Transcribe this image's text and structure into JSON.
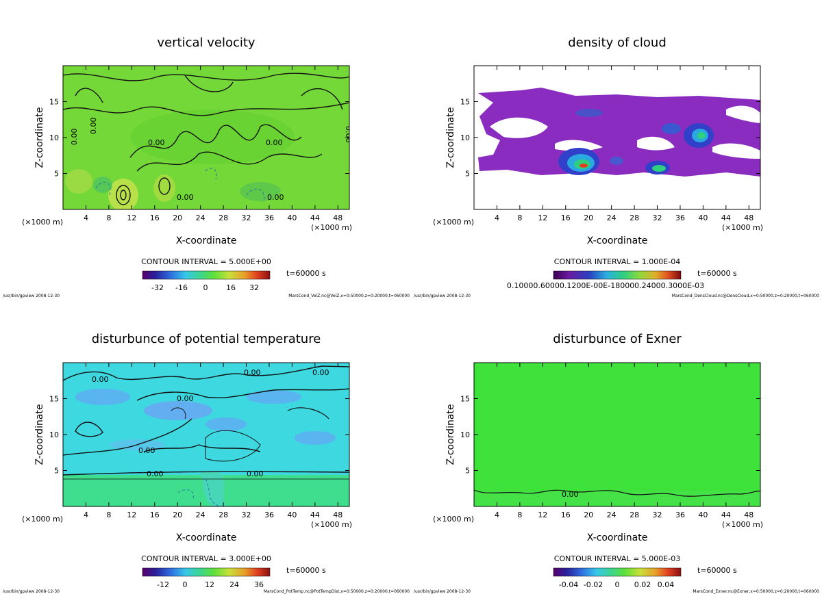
{
  "chart_data": [
    {
      "type": "heatmap",
      "title": "vertical velocity",
      "xlabel": "X-coordinate",
      "ylabel": "Z-coordinate",
      "x_unit_left": "(×1000 m)",
      "x_unit_right": "(×1000 m)",
      "xlim": [
        0,
        50
      ],
      "ylim": [
        0,
        20
      ],
      "xticks": [
        4,
        8,
        12,
        16,
        20,
        24,
        28,
        32,
        36,
        40,
        44,
        48
      ],
      "yticks": [
        5,
        10,
        15
      ],
      "contour_interval": "CONTOUR INTERVAL = 5.000E+00",
      "time": "t=60000 s",
      "colorbar_ticks": [
        "-32",
        "-16",
        "0",
        "16",
        "32"
      ],
      "contour_labels": [
        "0.00",
        "0.00",
        "0.00",
        "0.00",
        "0.00",
        "0.00",
        "0.00"
      ],
      "footer_left": "/usr/bin/gpview  2008-12-30",
      "footer_right": "MarsCond_VelZ.nc@VelZ,x=0:50000,z=0:20000,t=060000",
      "colors": [
        "#7ddc3c",
        "#5ed02e",
        "#9be045"
      ]
    },
    {
      "type": "heatmap",
      "title": "density of cloud",
      "xlabel": "X-coordinate",
      "ylabel": "Z-coordinate",
      "x_unit_left": "(×1000 m)",
      "x_unit_right": "(×1000 m)",
      "xlim": [
        0,
        50
      ],
      "ylim": [
        0,
        20
      ],
      "xticks": [
        4,
        8,
        12,
        16,
        20,
        24,
        28,
        32,
        36,
        40,
        44,
        48
      ],
      "yticks": [
        5,
        10,
        15
      ],
      "contour_interval": "CONTOUR INTERVAL = 1.000E-04",
      "time": "t=60000 s",
      "colorbar_ticks_overlap": "0.10000.60000.1200E-00E-180000.24000.3000E-03",
      "footer_left": "/usr/bin/gpview  2008-12-30",
      "footer_right": "MarsCond_DensCloud.nc@DensCloud,x=0:50000,z=0:20000,t=060000",
      "colors": [
        "#8e2fc0",
        "#3a5fd0",
        "#29c08a"
      ]
    },
    {
      "type": "heatmap",
      "title": "disturbunce of potential temperature",
      "xlabel": "X-coordinate",
      "ylabel": "Z-coordinate",
      "x_unit_left": "(×1000 m)",
      "x_unit_right": "(×1000 m)",
      "xlim": [
        0,
        50
      ],
      "ylim": [
        0,
        20
      ],
      "xticks": [
        4,
        8,
        12,
        16,
        20,
        24,
        28,
        32,
        36,
        40,
        44,
        48
      ],
      "yticks": [
        5,
        10,
        15
      ],
      "contour_interval": "CONTOUR INTERVAL = 3.000E+00",
      "time": "t=60000 s",
      "colorbar_ticks": [
        "-12",
        "0",
        "12",
        "24",
        "36"
      ],
      "contour_labels": [
        "0.00",
        "0.00",
        "0.00",
        "0.00",
        "0.00",
        "0.00",
        "0.00"
      ],
      "footer_left": "/usr/bin/gpview  2008-12-30",
      "footer_right": "MarsCond_PotTemp.nc@PotTempDist,x=0:50000,z=0:20000,t=060000",
      "colors": [
        "#3fd6e6",
        "#62b8f0",
        "#3fdc9a"
      ]
    },
    {
      "type": "heatmap",
      "title": "disturbunce of Exner",
      "xlabel": "X-coordinate",
      "ylabel": "Z-coordinate",
      "x_unit_left": "(×1000 m)",
      "x_unit_right": "(×1000 m)",
      "xlim": [
        0,
        50
      ],
      "ylim": [
        0,
        20
      ],
      "xticks": [
        4,
        8,
        12,
        16,
        20,
        24,
        28,
        32,
        36,
        40,
        44,
        48
      ],
      "yticks": [
        5,
        10,
        15
      ],
      "contour_interval": "CONTOUR INTERVAL = 5.000E-03",
      "time": "t=60000 s",
      "colorbar_ticks": [
        "-0.04",
        "-0.02",
        "0",
        "0.02",
        "0.04"
      ],
      "contour_labels": [
        "0.00"
      ],
      "footer_left": "/usr/bin/gpview  2008-12-30",
      "footer_right": "MarsCond_Exner.nc@Exner,x=0:50000,z=0:20000,t=060000",
      "colors": [
        "#3ee23a"
      ]
    }
  ]
}
